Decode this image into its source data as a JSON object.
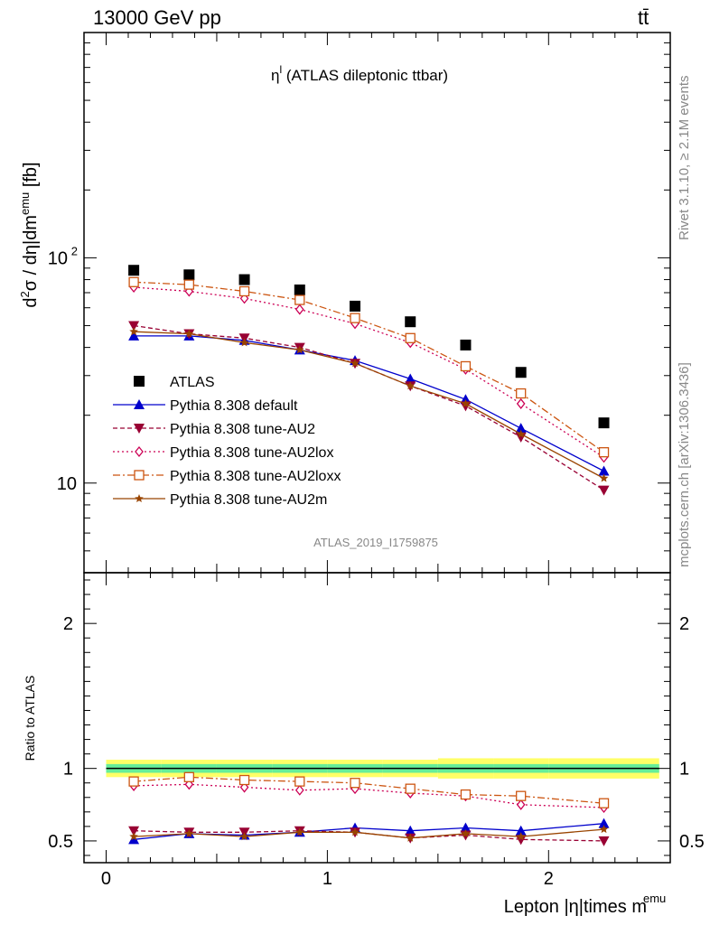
{
  "header": {
    "energy_label": "13000 GeV pp",
    "process_label": "tt̄",
    "plot_title_main": "η",
    "plot_title_sup": "l",
    "plot_title_rest": " (ATLAS dileptonic ttbar)",
    "analysis_id": "ATLAS_2019_I1759875",
    "side_rivet": "Rivet 3.1.10, ≥ 2.1M events",
    "side_mcplots": "mcplots.cern.ch [arXiv:1306.3436]"
  },
  "axes": {
    "ylabel_main": "d²σ / dη|dm^emu [fb]",
    "ylabel_ratio": "Ratio to ATLAS",
    "xlabel_main": "Lepton |η|times m",
    "xlabel_sup": "emu",
    "xlim": [
      -0.1,
      2.55
    ],
    "ylim_main_log": [
      4.0,
      1000
    ],
    "ylim_ratio": [
      0.35,
      2.35
    ],
    "x_ticks": [
      0,
      1,
      2
    ],
    "x_tick_labels": [
      "0",
      "1",
      "2"
    ],
    "y_main_labeled_ticks": [
      10,
      100
    ],
    "y_main_tick_labels": [
      "10",
      "10²"
    ],
    "y_ratio_ticks": [
      0.5,
      1,
      2
    ],
    "y_ratio_tick_labels": [
      "0.5",
      "1",
      "2"
    ]
  },
  "chart_data": {
    "type": "scatter",
    "x": [
      0.125,
      0.375,
      0.625,
      0.875,
      1.125,
      1.375,
      1.625,
      1.875,
      2.25
    ],
    "scale": "log",
    "series": [
      {
        "name": "ATLAS",
        "color": "#000000",
        "marker": "square-filled",
        "dash": "none",
        "values": [
          88,
          84,
          80,
          72,
          61,
          52,
          41,
          31,
          18.5
        ],
        "ratio": [
          1,
          1,
          1,
          1,
          1,
          1,
          1,
          1,
          1
        ]
      },
      {
        "name": "Pythia 8.308 default",
        "color": "#0000cc",
        "marker": "triangle-up-filled",
        "dash": "none",
        "values": [
          45,
          45,
          43,
          39,
          35,
          29,
          23.5,
          17.5,
          11.3
        ],
        "ratio": [
          0.51,
          0.55,
          0.54,
          0.56,
          0.59,
          0.57,
          0.59,
          0.57,
          0.62
        ]
      },
      {
        "name": "Pythia 8.308 tune-AU2",
        "color": "#990033",
        "marker": "triangle-down-filled",
        "dash": "5,3",
        "values": [
          50,
          46,
          44,
          40,
          34,
          27,
          22,
          16,
          9.3
        ],
        "ratio": [
          0.57,
          0.56,
          0.56,
          0.57,
          0.56,
          0.52,
          0.54,
          0.51,
          0.5
        ]
      },
      {
        "name": "Pythia 8.308 tune-AU2lox",
        "color": "#cc0055",
        "marker": "diamond-open",
        "dash": "2,3",
        "values": [
          74,
          71,
          66,
          59,
          51,
          42,
          32,
          22.5,
          13.0
        ],
        "ratio": [
          0.88,
          0.89,
          0.87,
          0.85,
          0.86,
          0.83,
          0.81,
          0.75,
          0.73
        ]
      },
      {
        "name": "Pythia 8.308 tune-AU2loxx",
        "color": "#cc5511",
        "marker": "square-open",
        "dash": "8,3,2,3",
        "values": [
          78,
          76,
          71,
          65,
          54,
          44,
          33,
          25,
          13.7
        ],
        "ratio": [
          0.91,
          0.94,
          0.92,
          0.91,
          0.9,
          0.86,
          0.82,
          0.81,
          0.76
        ]
      },
      {
        "name": "Pythia 8.308 tune-AU2m",
        "color": "#994400",
        "marker": "star-filled",
        "dash": "none",
        "values": [
          47,
          46,
          42,
          39,
          34,
          27,
          22.5,
          16.5,
          10.5
        ],
        "ratio": [
          0.53,
          0.55,
          0.53,
          0.56,
          0.56,
          0.52,
          0.55,
          0.53,
          0.58
        ]
      }
    ],
    "uncertainty_band": {
      "inner_color": "#66ee99",
      "outer_color": "#ffff66",
      "inner_halfwidth": [
        0.03,
        0.03,
        0.03,
        0.03,
        0.03,
        0.03,
        0.03,
        0.03,
        0.03
      ],
      "outer_halfwidth": [
        0.06,
        0.06,
        0.06,
        0.06,
        0.06,
        0.06,
        0.07,
        0.07,
        0.07
      ]
    },
    "legend_position": "lower-left"
  }
}
